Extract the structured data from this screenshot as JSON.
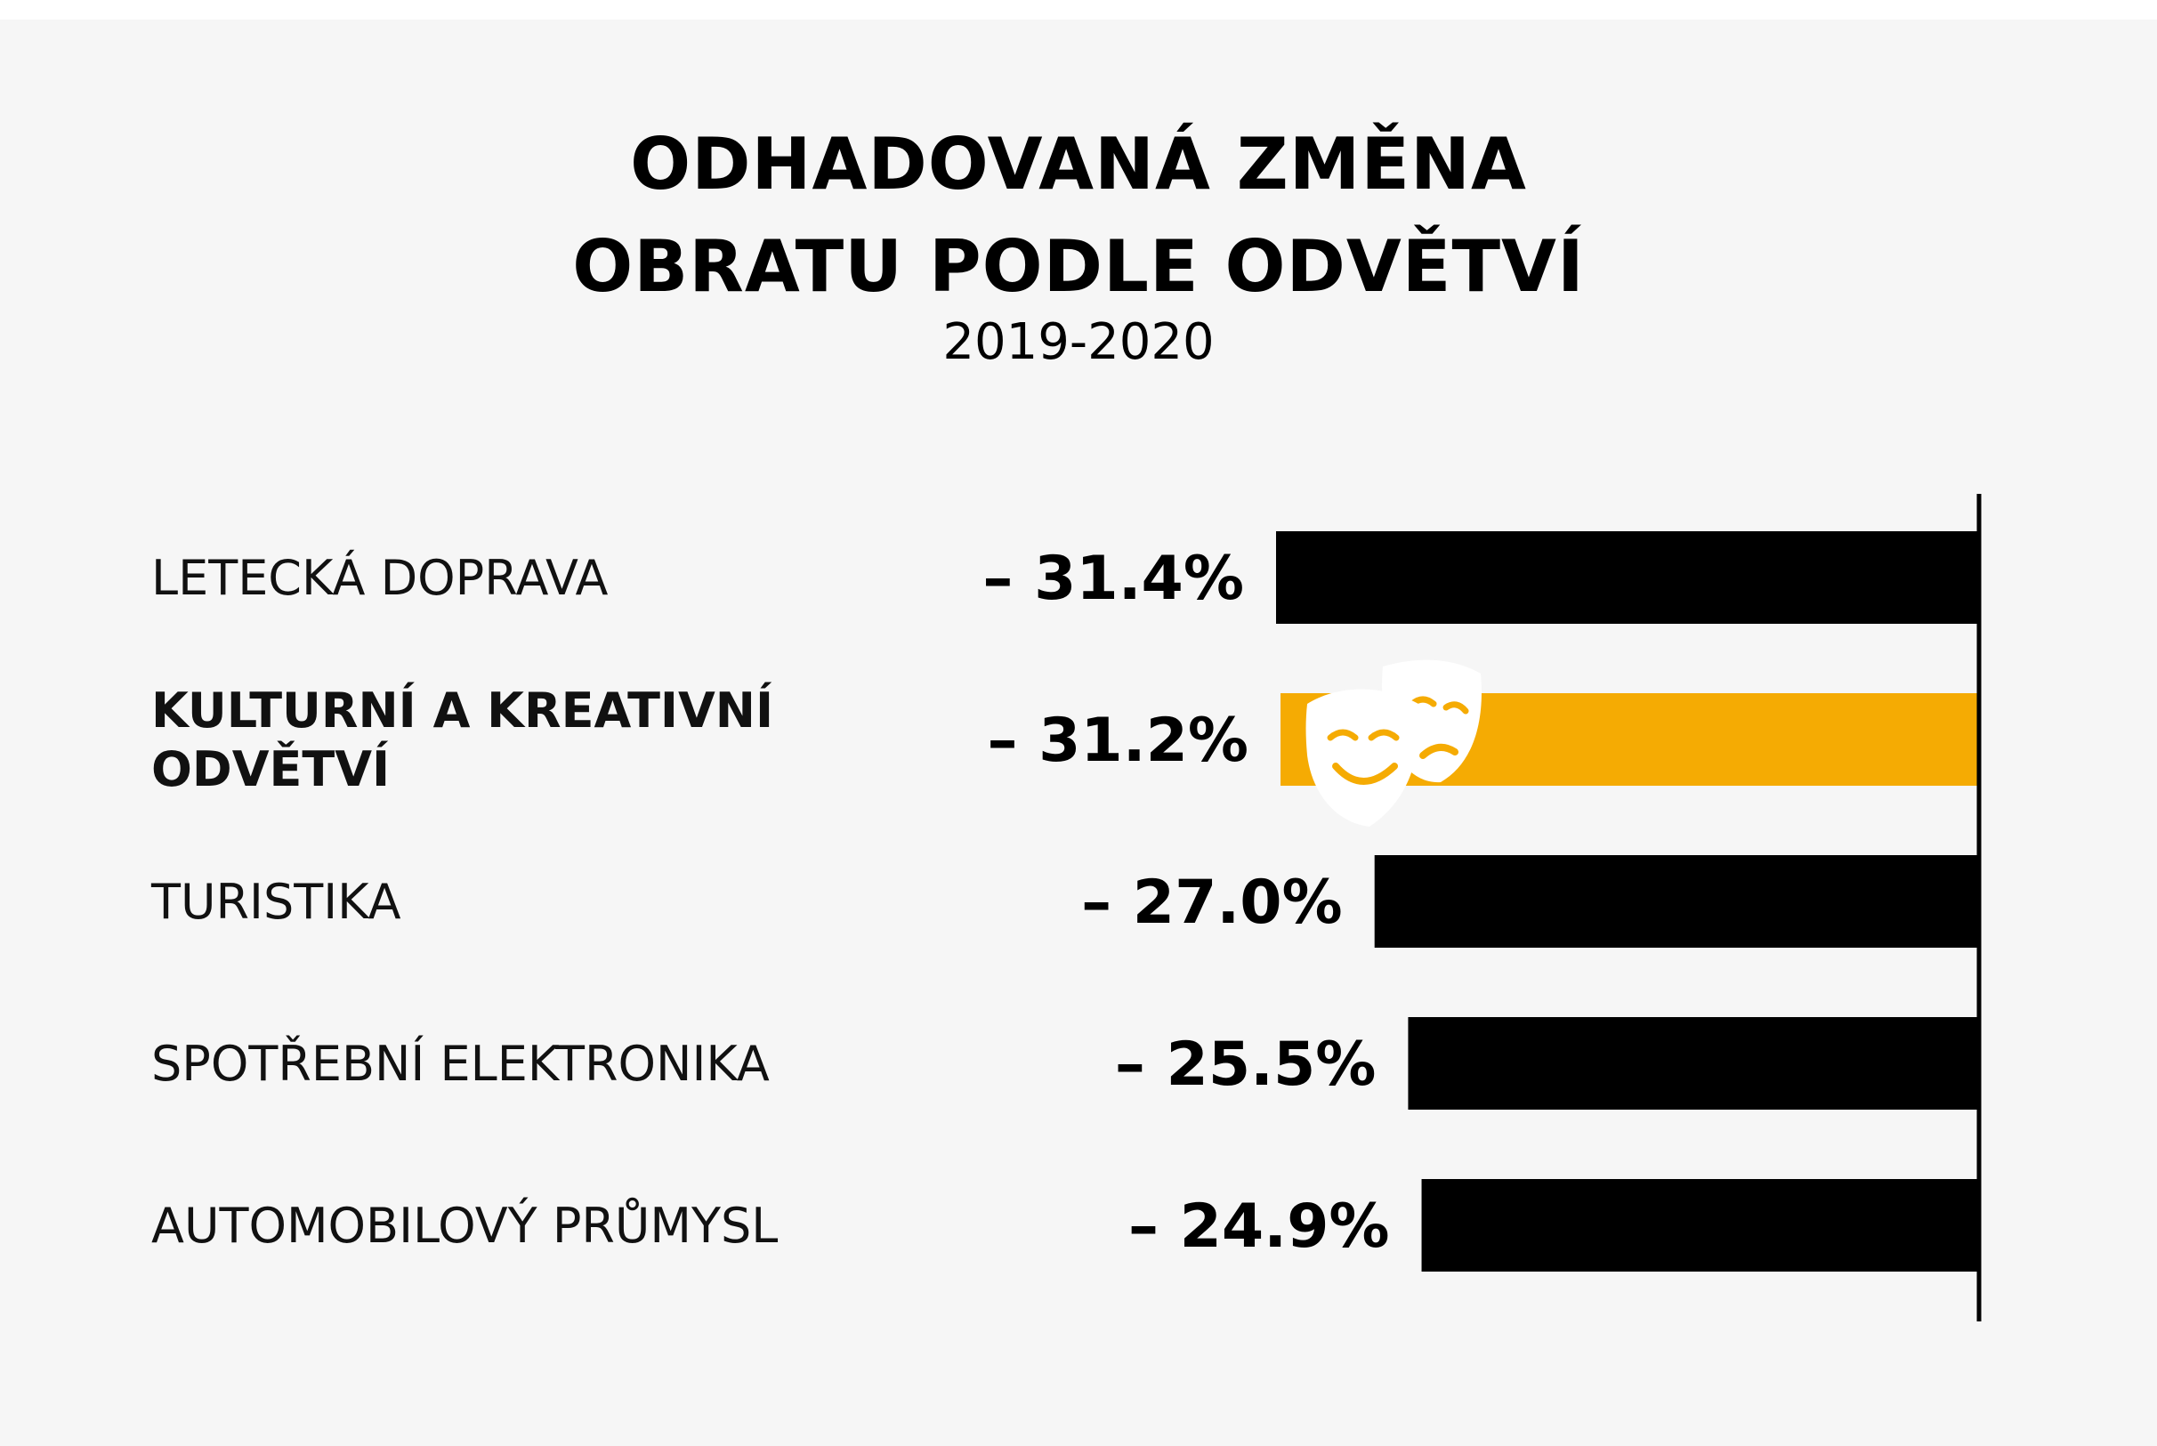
{
  "title_line_1": "ODHADOVANÁ ZMĚNA",
  "title_line_2": "OBRATU PODLE ODVĚTVÍ",
  "subtitle": "2019-2020",
  "colors": {
    "background": "#f6f6f6",
    "bar_default": "#000000",
    "bar_highlight": "#f5ab03",
    "icon": "#ffffff"
  },
  "chart_data": {
    "type": "bar",
    "orientation": "horizontal",
    "title": "ODHADOVANÁ ZMĚNA OBRATU PODLE ODVĚTVÍ",
    "subtitle": "2019-2020",
    "xlabel": "",
    "ylabel": "",
    "grid": false,
    "xlim": [
      -31.4,
      0
    ],
    "categories": [
      "LETECKÁ DOPRAVA",
      "KULTURNÍ A KREATIVNÍ ODVĚTVÍ",
      "TURISTIKA",
      "SPOTŘEBNÍ ELEKTRONIKA",
      "AUTOMOBILOVÝ PRŮMYSL"
    ],
    "category_lines": [
      [
        "LETECKÁ DOPRAVA"
      ],
      [
        "KULTURNÍ A KREATIVNÍ",
        "ODVĚTVÍ"
      ],
      [
        "TURISTIKA"
      ],
      [
        "SPOTŘEBNÍ ELEKTRONIKA"
      ],
      [
        "AUTOMOBILOVÝ PRŮMYSL"
      ]
    ],
    "values": [
      -31.4,
      -31.2,
      -27.0,
      -25.5,
      -24.9
    ],
    "value_labels": [
      "– 31.4%",
      "– 31.2%",
      "– 27.0%",
      "– 25.5%",
      "– 24.9%"
    ],
    "highlight_index": 1,
    "highlight_icon": "theatre-masks-icon"
  }
}
